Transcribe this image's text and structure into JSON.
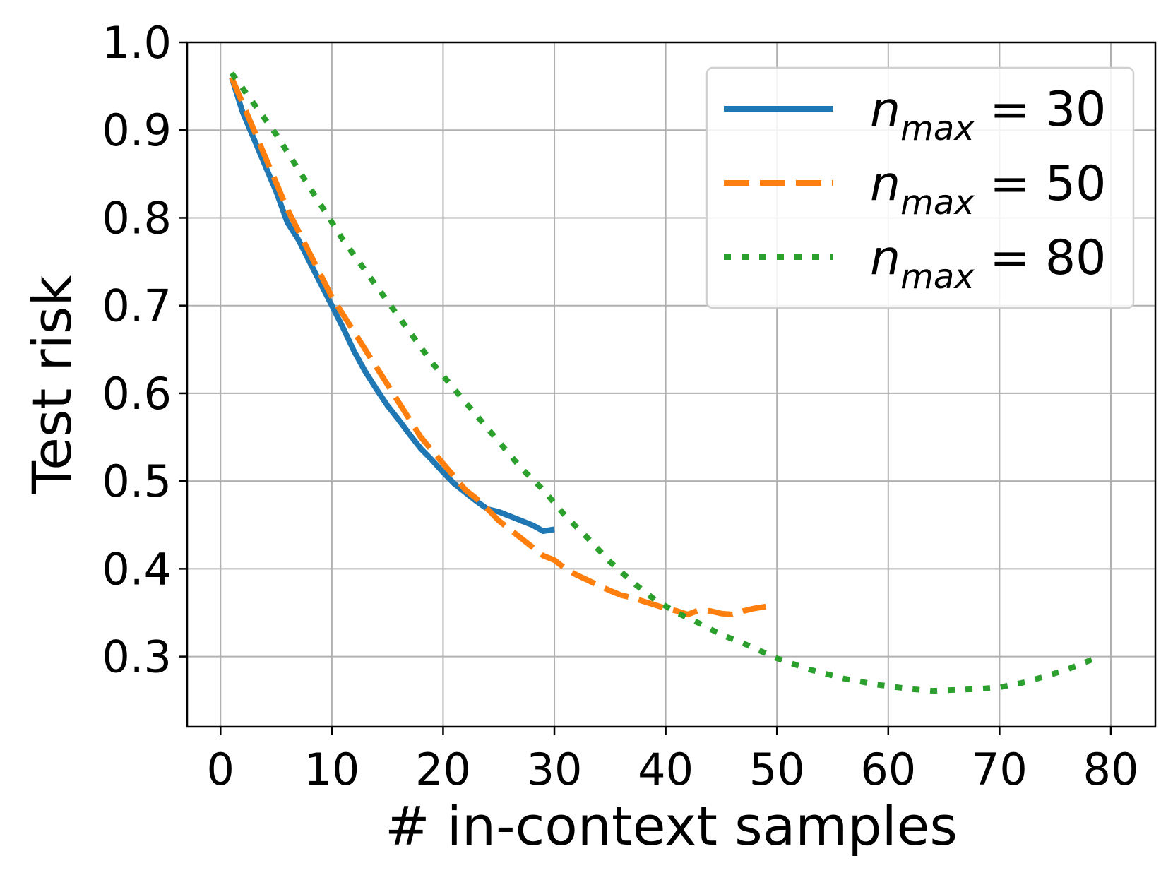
{
  "chart_data": {
    "type": "line",
    "title": "",
    "xlabel": "# in-context samples",
    "ylabel": "Test risk",
    "xlim": [
      -3,
      84
    ],
    "ylim": [
      0.22,
      1.0
    ],
    "xticks": [
      0,
      10,
      20,
      30,
      40,
      50,
      60,
      70,
      80
    ],
    "xtick_labels": [
      "0",
      "10",
      "20",
      "30",
      "40",
      "50",
      "60",
      "70",
      "80"
    ],
    "yticks": [
      0.3,
      0.4,
      0.5,
      0.6,
      0.7,
      0.8,
      0.9,
      1.0
    ],
    "ytick_labels": [
      "0.3",
      "0.4",
      "0.5",
      "0.6",
      "0.7",
      "0.8",
      "0.9",
      "1.0"
    ],
    "grid": true,
    "legend_position": "top-right",
    "series": [
      {
        "name": "n_max = 30",
        "legend_var": "n",
        "legend_sub": "max",
        "legend_rest": " = 30",
        "color": "#1f77b4",
        "style": "solid",
        "x": [
          1,
          2,
          3,
          4,
          5,
          6,
          7,
          8,
          9,
          10,
          11,
          12,
          13,
          14,
          15,
          16,
          17,
          18,
          19,
          20,
          21,
          22,
          23,
          24,
          25,
          26,
          27,
          28,
          29,
          30
        ],
        "y": [
          0.96,
          0.92,
          0.89,
          0.86,
          0.83,
          0.795,
          0.775,
          0.75,
          0.725,
          0.7,
          0.675,
          0.648,
          0.625,
          0.605,
          0.586,
          0.57,
          0.553,
          0.537,
          0.524,
          0.51,
          0.497,
          0.487,
          0.477,
          0.468,
          0.465,
          0.46,
          0.455,
          0.45,
          0.443,
          0.445
        ]
      },
      {
        "name": "n_max = 50",
        "legend_var": "n",
        "legend_sub": "max",
        "legend_rest": " = 50",
        "color": "#ff7f0e",
        "style": "dashed",
        "x": [
          1,
          2,
          3,
          4,
          5,
          6,
          7,
          8,
          9,
          10,
          11,
          12,
          13,
          14,
          15,
          16,
          17,
          18,
          19,
          20,
          21,
          22,
          23,
          24,
          25,
          26,
          27,
          28,
          29,
          30,
          31,
          32,
          33,
          34,
          35,
          36,
          37,
          38,
          39,
          40,
          41,
          42,
          43,
          44,
          45,
          46,
          47,
          48,
          49
        ],
        "y": [
          0.96,
          0.93,
          0.9,
          0.87,
          0.84,
          0.81,
          0.785,
          0.76,
          0.735,
          0.71,
          0.69,
          0.67,
          0.65,
          0.63,
          0.61,
          0.59,
          0.57,
          0.55,
          0.535,
          0.52,
          0.505,
          0.49,
          0.48,
          0.468,
          0.455,
          0.445,
          0.435,
          0.425,
          0.415,
          0.41,
          0.4,
          0.393,
          0.387,
          0.381,
          0.375,
          0.37,
          0.367,
          0.363,
          0.359,
          0.355,
          0.352,
          0.348,
          0.353,
          0.352,
          0.349,
          0.348,
          0.352,
          0.355,
          0.357
        ]
      },
      {
        "name": "n_max = 80",
        "legend_var": "n",
        "legend_sub": "max",
        "legend_rest": " = 80",
        "color": "#2ca02c",
        "style": "dotted",
        "x": [
          1,
          3,
          5,
          7,
          9,
          11,
          13,
          15,
          17,
          19,
          21,
          23,
          25,
          27,
          29,
          31,
          33,
          35,
          37,
          39,
          41,
          43,
          45,
          47,
          50,
          53,
          56,
          59,
          62,
          64,
          66,
          68,
          70,
          72,
          74,
          76,
          79
        ],
        "y": [
          0.965,
          0.93,
          0.895,
          0.855,
          0.815,
          0.775,
          0.74,
          0.705,
          0.67,
          0.635,
          0.605,
          0.575,
          0.545,
          0.515,
          0.49,
          0.46,
          0.435,
          0.408,
          0.385,
          0.365,
          0.35,
          0.338,
          0.325,
          0.315,
          0.298,
          0.285,
          0.275,
          0.268,
          0.263,
          0.261,
          0.262,
          0.263,
          0.265,
          0.27,
          0.277,
          0.285,
          0.3
        ]
      }
    ]
  }
}
